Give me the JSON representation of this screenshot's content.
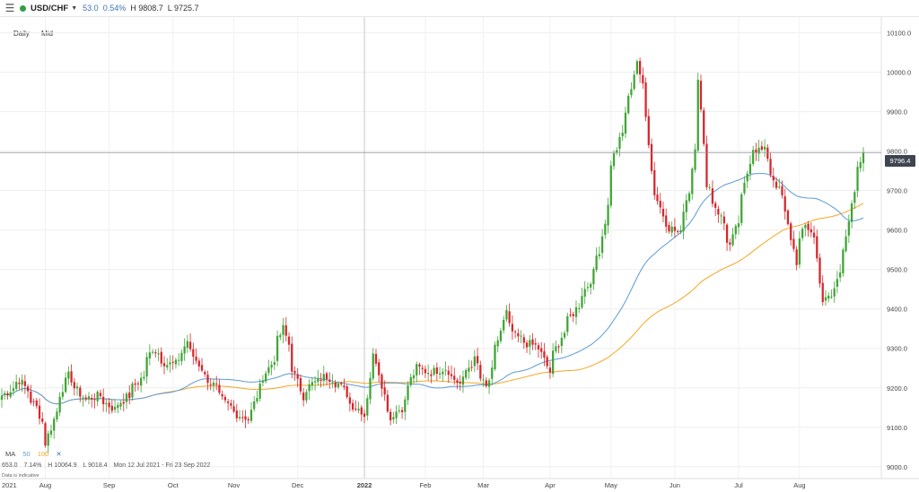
{
  "header": {
    "menu_icon": "hamburger-icon",
    "symbol": "USD/CHF",
    "change": "53.0",
    "change_pct": "0.54%",
    "high": "H 9808.7",
    "low": "L 9725.7",
    "status_color": "#2ea043"
  },
  "timeframe": {
    "period": "Daily",
    "price_type": "Mid"
  },
  "indicator": {
    "label": "MA",
    "ma1": "50",
    "ma2": "100",
    "close": "✕",
    "ma1_color": "#5b9bd5",
    "ma2_color": "#f5a623"
  },
  "stats": {
    "range": "653.0",
    "range_pct": "7.14%",
    "high": "H 10064.9",
    "low": "L 9018.4",
    "period": "Mon 12 Jul 2021 - Fri 23 Sep 2022"
  },
  "note": "Data is indicative",
  "current_price_label": "9796.4",
  "chart_data": {
    "type": "candlestick",
    "current_price": 9796.4,
    "ylim": [
      8970,
      10140
    ],
    "y_ticks": [
      9000,
      9100,
      9200,
      9300,
      9400,
      9500,
      9600,
      9700,
      9800,
      9900,
      10000,
      10100
    ],
    "y_tick_labels": [
      "9000.0",
      "9100.0",
      "9200.0",
      "9300.0",
      "9400.0",
      "9500.0",
      "9600.0",
      "9700.0",
      "9800.0",
      "9900.0",
      "10000.0",
      "10100.0"
    ],
    "x_labels": [
      "2021",
      "Aug",
      "Sep",
      "Oct",
      "Nov",
      "Dec",
      "2022",
      "Feb",
      "Mar",
      "Apr",
      "May",
      "Jun",
      "Jul",
      "Aug",
      "Sep"
    ],
    "bull_color": "#3fa535",
    "bear_color": "#d7262b",
    "close_anchors": [
      [
        "2021-07-12",
        9180
      ],
      [
        "2021-07-20",
        9220
      ],
      [
        "2021-07-28",
        9150
      ],
      [
        "2021-08-02",
        9060
      ],
      [
        "2021-08-06",
        9140
      ],
      [
        "2021-08-12",
        9230
      ],
      [
        "2021-08-20",
        9170
      ],
      [
        "2021-08-27",
        9180
      ],
      [
        "2021-09-03",
        9145
      ],
      [
        "2021-09-10",
        9180
      ],
      [
        "2021-09-17",
        9230
      ],
      [
        "2021-09-22",
        9300
      ],
      [
        "2021-09-29",
        9260
      ],
      [
        "2021-10-04",
        9260
      ],
      [
        "2021-10-08",
        9320
      ],
      [
        "2021-10-15",
        9250
      ],
      [
        "2021-10-22",
        9200
      ],
      [
        "2021-10-27",
        9160
      ],
      [
        "2021-11-03",
        9130
      ],
      [
        "2021-11-08",
        9120
      ],
      [
        "2021-11-12",
        9200
      ],
      [
        "2021-11-18",
        9260
      ],
      [
        "2021-11-24",
        9350
      ],
      [
        "2021-11-30",
        9230
      ],
      [
        "2021-12-03",
        9180
      ],
      [
        "2021-12-08",
        9210
      ],
      [
        "2021-12-15",
        9230
      ],
      [
        "2021-12-21",
        9210
      ],
      [
        "2021-12-27",
        9160
      ],
      [
        "2022-01-03",
        9130
      ],
      [
        "2022-01-06",
        9280
      ],
      [
        "2022-01-10",
        9240
      ],
      [
        "2022-01-14",
        9120
      ],
      [
        "2022-01-20",
        9150
      ],
      [
        "2022-01-27",
        9250
      ],
      [
        "2022-02-03",
        9240
      ],
      [
        "2022-02-10",
        9250
      ],
      [
        "2022-02-17",
        9210
      ],
      [
        "2022-02-24",
        9270
      ],
      [
        "2022-03-02",
        9200
      ],
      [
        "2022-03-07",
        9300
      ],
      [
        "2022-03-11",
        9390
      ],
      [
        "2022-03-16",
        9330
      ],
      [
        "2022-03-23",
        9310
      ],
      [
        "2022-03-28",
        9300
      ],
      [
        "2022-04-01",
        9240
      ],
      [
        "2022-04-07",
        9330
      ],
      [
        "2022-04-12",
        9380
      ],
      [
        "2022-04-20",
        9460
      ],
      [
        "2022-04-26",
        9550
      ],
      [
        "2022-05-02",
        9770
      ],
      [
        "2022-05-09",
        9900
      ],
      [
        "2022-05-13",
        10030
      ],
      [
        "2022-05-17",
        9970
      ],
      [
        "2022-05-20",
        9750
      ],
      [
        "2022-05-27",
        9620
      ],
      [
        "2022-06-03",
        9590
      ],
      [
        "2022-06-08",
        9700
      ],
      [
        "2022-06-13",
        9990
      ],
      [
        "2022-06-16",
        9720
      ],
      [
        "2022-06-21",
        9660
      ],
      [
        "2022-06-28",
        9560
      ],
      [
        "2022-07-04",
        9680
      ],
      [
        "2022-07-08",
        9810
      ],
      [
        "2022-07-14",
        9800
      ],
      [
        "2022-07-19",
        9730
      ],
      [
        "2022-07-25",
        9640
      ],
      [
        "2022-07-29",
        9520
      ],
      [
        "2022-08-03",
        9610
      ],
      [
        "2022-08-08",
        9580
      ],
      [
        "2022-08-11",
        9420
      ],
      [
        "2022-08-16",
        9430
      ],
      [
        "2022-08-22",
        9560
      ],
      [
        "2022-08-26",
        9690
      ],
      [
        "2022-08-29",
        9750
      ],
      [
        "2022-08-31",
        9796.4
      ]
    ]
  }
}
